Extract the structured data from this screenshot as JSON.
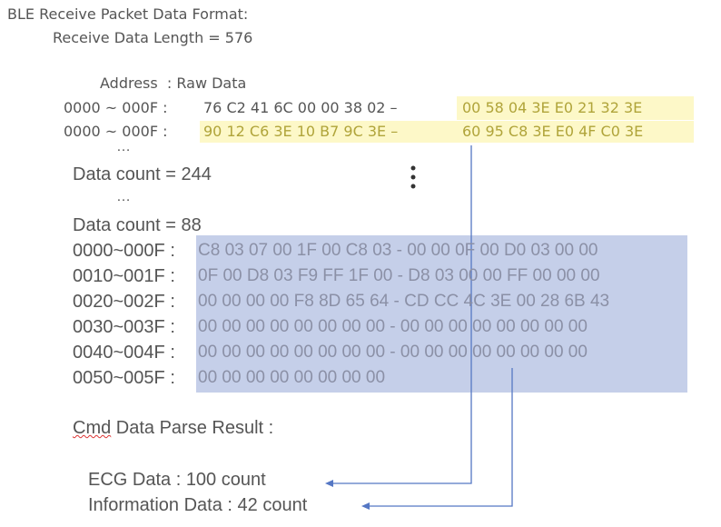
{
  "header": {
    "title": "BLE Receive Packet Data Format:",
    "length": "Receive Data Length = 576"
  },
  "raw": {
    "heading": "Address  : Raw Data",
    "rows": [
      {
        "address": "0000 ~ 000F :",
        "first": "76 C2 41 6C 00 00 38 02 –",
        "second": "00 58 04 3E E0 21 32 3E"
      },
      {
        "address": "0000 ~ 000F :",
        "first": "90 12 C6 3E 10 B7 9C 3E –",
        "second": "60 95 C8 3E E0 4F C0 3E"
      }
    ]
  },
  "ellipsis_1": "…",
  "count_line": "Data count = 244",
  "ellipsis_2": "…",
  "hex_table": {
    "heading": "Data count = 88",
    "rows": [
      {
        "address": "0000~000F :",
        "data": "C8 03 07 00 1F 00 C8 03 - 00 00 0F 00 D0 03 00 00"
      },
      {
        "address": "0010~001F :",
        "data": "0F 00 D8 03 F9 FF 1F 00 - D8 03 00 00 FF 00 00 00"
      },
      {
        "address": "0020~002F :",
        "data": "00 00 00 00 F8 8D 65 64 - CD CC 4C 3E 00 28 6B 43"
      },
      {
        "address": "0030~003F :",
        "data": "00 00 00 00 00 00 00 00 - 00 00 00 00 00 00 00 00"
      },
      {
        "address": "0040~004F :",
        "data": "00 00 00 00 00 00 00 00 - 00 00 00 00 00 00 00 00"
      },
      {
        "address": "0050~005F :",
        "data": "00 00 00 00 00 00 00 00"
      }
    ]
  },
  "result": {
    "title": "Cmd Data Parse Result :",
    "items": [
      "ECG Data : 100 count",
      "Information Data : 42 count"
    ]
  }
}
